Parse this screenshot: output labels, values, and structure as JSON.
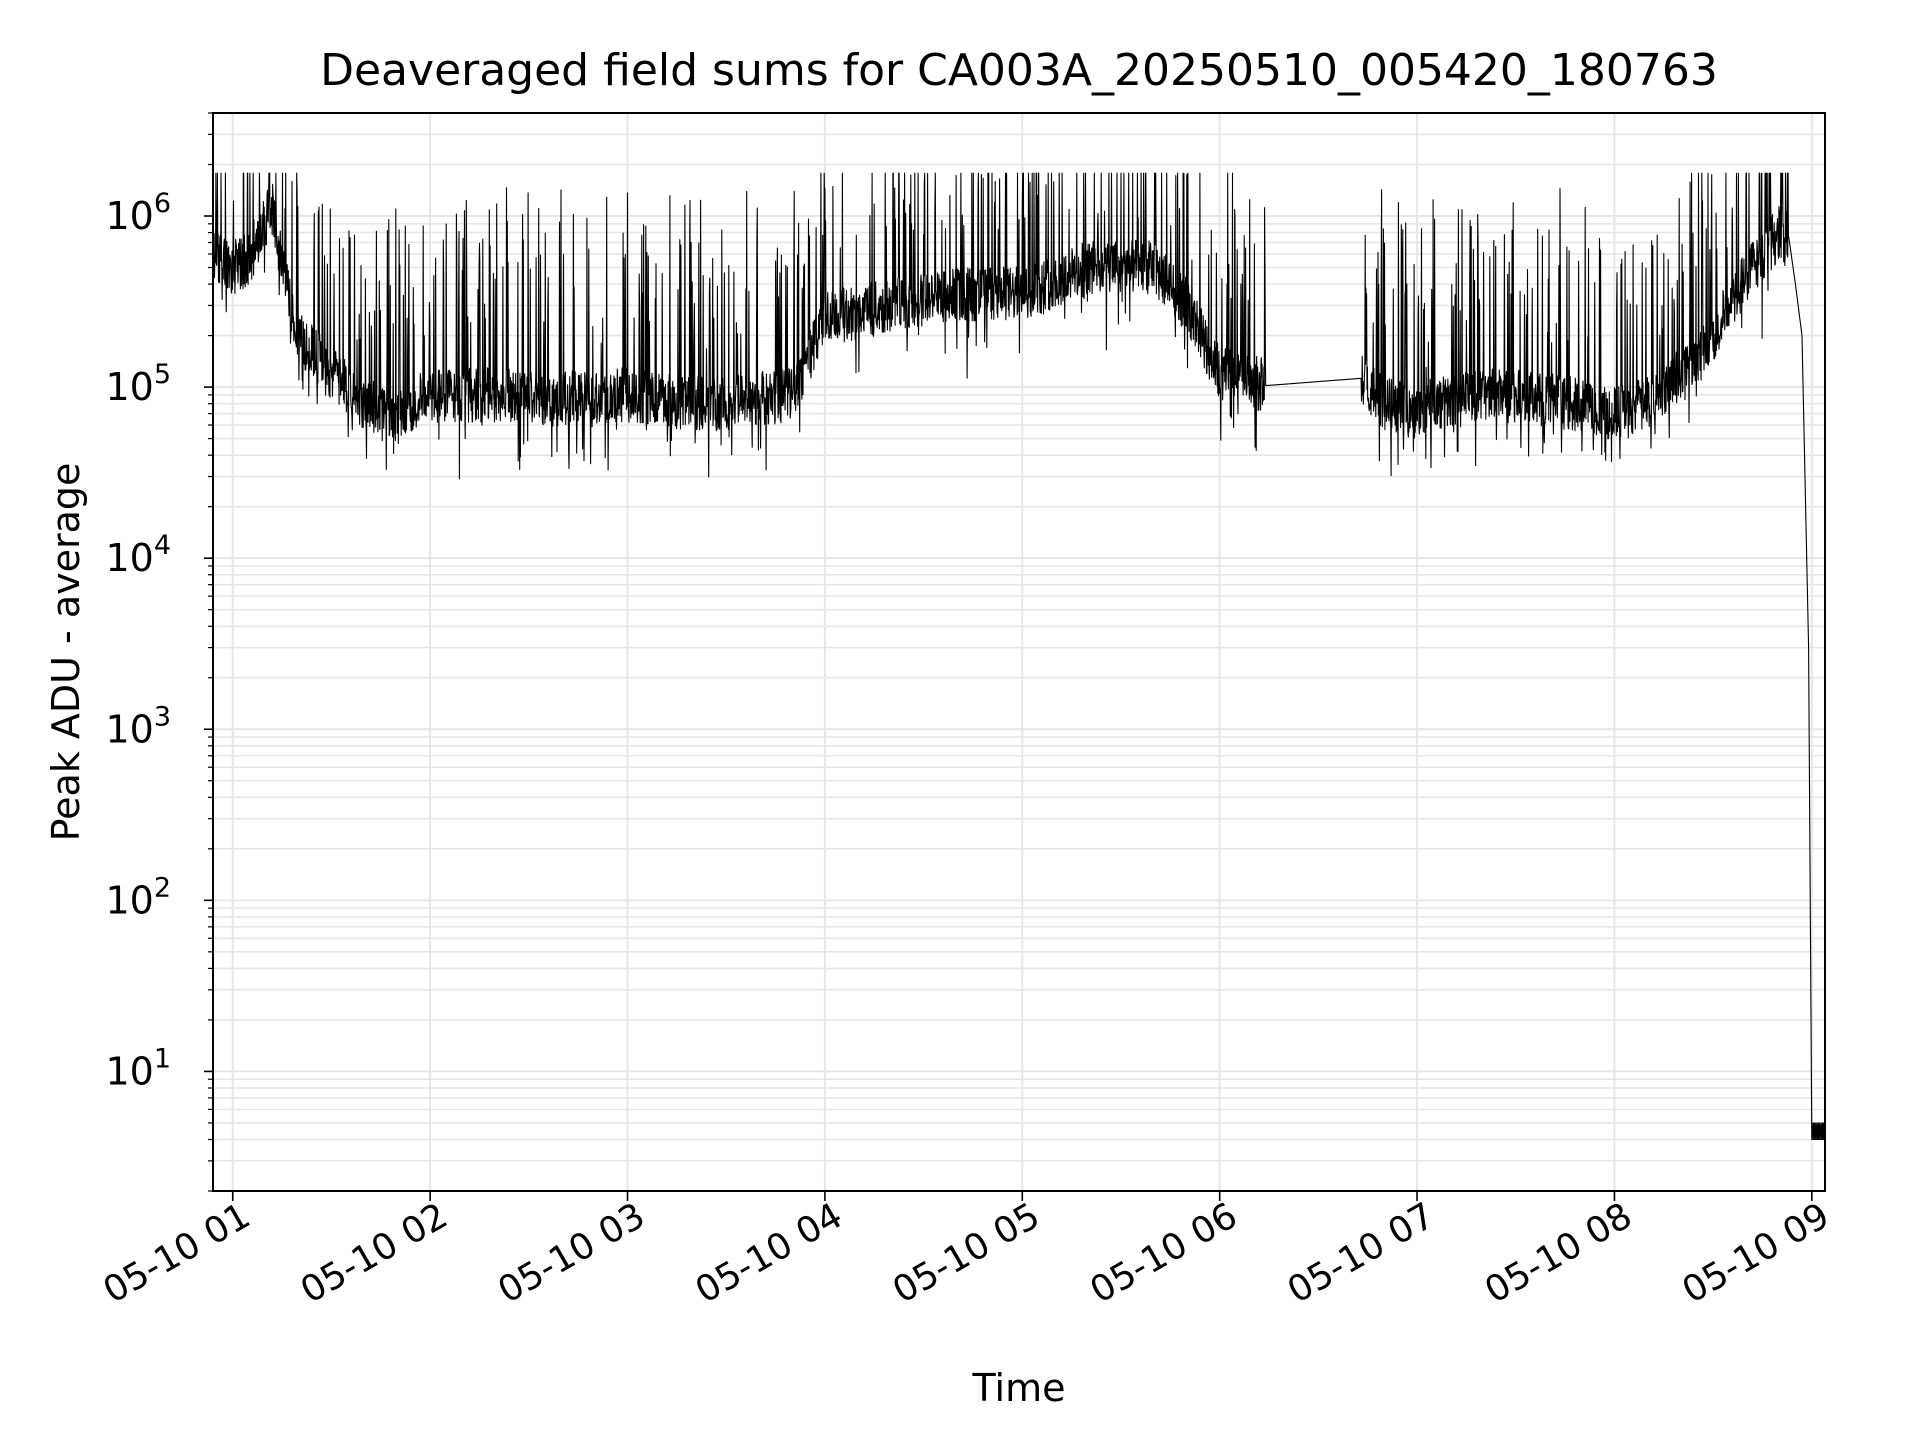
{
  "chart_data": {
    "type": "line",
    "title": "Deaveraged field sums for CA003A_20250510_005420_180763",
    "xlabel": "Time",
    "ylabel": "Peak ADU - average",
    "yscale": "log",
    "ylim": [
      2,
      4000000
    ],
    "xlim": [
      "2025-05-10 00:54",
      "2025-05-10 09:04"
    ],
    "grid": true,
    "line_color": "#000000",
    "x_ticks": [
      {
        "value": "2025-05-10 01:00",
        "label": "05-10 01"
      },
      {
        "value": "2025-05-10 02:00",
        "label": "05-10 02"
      },
      {
        "value": "2025-05-10 03:00",
        "label": "05-10 03"
      },
      {
        "value": "2025-05-10 04:00",
        "label": "05-10 04"
      },
      {
        "value": "2025-05-10 05:00",
        "label": "05-10 05"
      },
      {
        "value": "2025-05-10 06:00",
        "label": "05-10 06"
      },
      {
        "value": "2025-05-10 07:00",
        "label": "05-10 07"
      },
      {
        "value": "2025-05-10 08:00",
        "label": "05-10 08"
      },
      {
        "value": "2025-05-10 09:00",
        "label": "05-10 09"
      }
    ],
    "y_ticks": [
      {
        "value": 10,
        "base": "10",
        "exp": "1"
      },
      {
        "value": 100,
        "base": "10",
        "exp": "2"
      },
      {
        "value": 1000,
        "base": "10",
        "exp": "3"
      },
      {
        "value": 10000,
        "base": "10",
        "exp": "4"
      },
      {
        "value": 100000,
        "base": "10",
        "exp": "5"
      },
      {
        "value": 1000000,
        "base": "10",
        "exp": "6"
      }
    ],
    "series": [
      {
        "x": [
          "2025-05-10 00:54",
          "2025-05-10 01:00",
          "2025-05-10 01:05",
          "2025-05-10 01:08",
          "2025-05-10 01:12",
          "2025-05-10 01:15",
          "2025-05-10 01:20",
          "2025-05-10 01:30",
          "2025-05-10 01:40",
          "2025-05-10 01:50",
          "2025-05-10 02:00",
          "2025-05-10 02:20",
          "2025-05-10 02:40",
          "2025-05-10 03:00",
          "2025-05-10 03:20",
          "2025-05-10 03:30",
          "2025-05-10 03:40",
          "2025-05-10 03:50",
          "2025-05-10 04:00",
          "2025-05-10 04:20",
          "2025-05-10 04:40",
          "2025-05-10 05:00",
          "2025-05-10 05:20",
          "2025-05-10 05:40",
          "2025-05-10 05:50",
          "2025-05-10 06:00",
          "2025-05-10 06:14",
          "2025-05-10 06:43",
          "2025-05-10 06:50",
          "2025-05-10 07:00",
          "2025-05-10 07:20",
          "2025-05-10 07:40",
          "2025-05-10 08:00",
          "2025-05-10 08:10",
          "2025-05-10 08:20",
          "2025-05-10 08:30",
          "2025-05-10 08:40",
          "2025-05-10 08:50",
          "2025-05-10 08:53",
          "2025-05-10 08:55",
          "2025-05-10 08:57",
          "2025-05-10 08:59",
          "2025-05-10 09:00",
          "2025-05-10 09:04"
        ],
        "y": [
          600000,
          500000,
          550000,
          800000,
          1100000,
          500000,
          200000,
          120000,
          80000,
          70000,
          90000,
          90000,
          85000,
          90000,
          80000,
          80000,
          85000,
          90000,
          250000,
          300000,
          350000,
          350000,
          500000,
          500000,
          300000,
          120000,
          102000,
          108000,
          80000,
          75000,
          90000,
          85000,
          70000,
          80000,
          120000,
          200000,
          450000,
          800000,
          750000,
          400000,
          200000,
          3000,
          4,
          4
        ]
      }
    ]
  }
}
